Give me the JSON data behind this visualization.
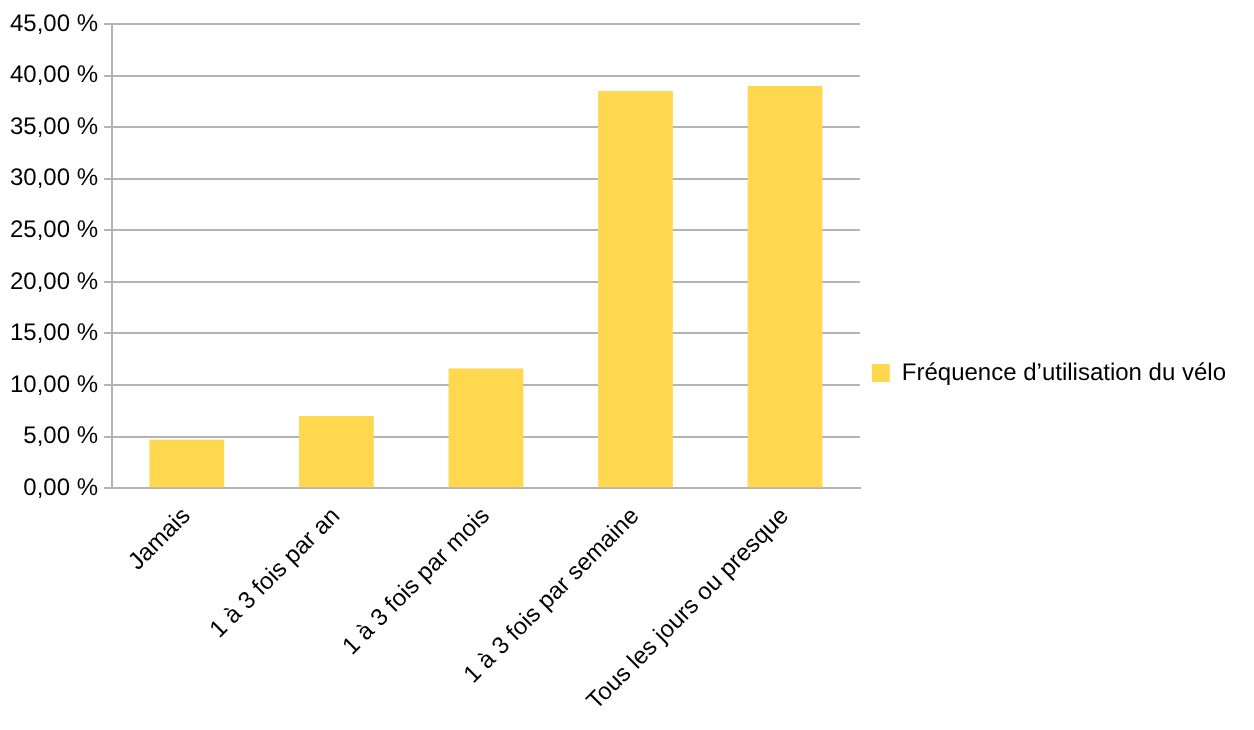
{
  "chart_data": {
    "type": "bar",
    "categories": [
      "Jamais",
      "1 à 3 fois par an",
      "1 à 3 fois par mois",
      "1 à 3 fois par semaine",
      "Tous les jours ou presque"
    ],
    "series": [
      {
        "name": "Fréquence d’utilisation du vélo",
        "color": "#ffd84f",
        "values": [
          4.7,
          7.0,
          11.6,
          38.5,
          39.0
        ]
      }
    ],
    "ylim": [
      0,
      45
    ],
    "yticks": [
      {
        "value": 0,
        "label": "0,00 %"
      },
      {
        "value": 5,
        "label": "5,00 %"
      },
      {
        "value": 10,
        "label": "10,00 %"
      },
      {
        "value": 15,
        "label": "15,00 %"
      },
      {
        "value": 20,
        "label": "20,00 %"
      },
      {
        "value": 25,
        "label": "25,00 %"
      },
      {
        "value": 30,
        "label": "30,00 %"
      },
      {
        "value": 35,
        "label": "35,00 %"
      },
      {
        "value": 40,
        "label": "40,00 %"
      },
      {
        "value": 45,
        "label": "45,00 %"
      }
    ],
    "grid": "y",
    "legend": "right"
  }
}
